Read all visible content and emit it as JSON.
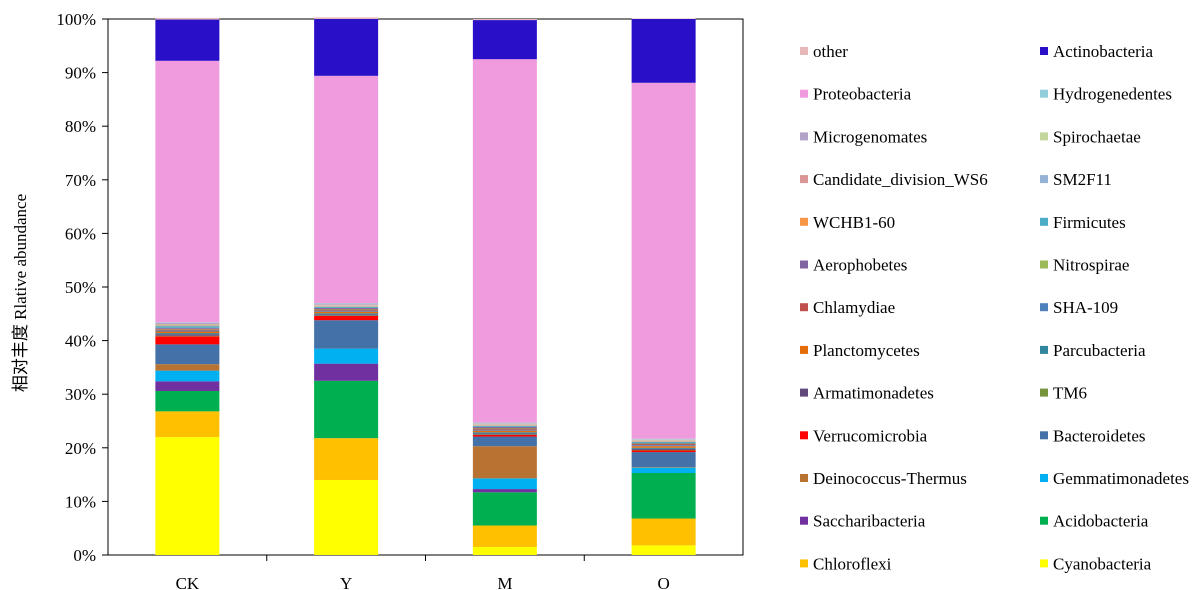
{
  "chart_data": {
    "type": "bar",
    "stacked": true,
    "ylabel": "相对丰度 Rlative abundance",
    "ylim": [
      0,
      100
    ],
    "ytick_labels": [
      "0%",
      "10%",
      "20%",
      "30%",
      "40%",
      "50%",
      "60%",
      "70%",
      "80%",
      "90%",
      "100%"
    ],
    "categories": [
      "CK",
      "Y",
      "M",
      "O"
    ],
    "legend_position": "right",
    "grid": false,
    "series": [
      {
        "name": "Cyanobacteria",
        "color": "#FFFF00",
        "values": [
          22.0,
          14.0,
          1.5,
          1.8
        ]
      },
      {
        "name": "Chloroflexi",
        "color": "#FFC000",
        "values": [
          4.8,
          7.8,
          4.0,
          5.0
        ]
      },
      {
        "name": "Acidobacteria",
        "color": "#00B050",
        "values": [
          3.8,
          10.7,
          6.2,
          8.5
        ]
      },
      {
        "name": "Saccharibacteria",
        "color": "#7030A0",
        "values": [
          1.8,
          3.2,
          0.6,
          0.0
        ]
      },
      {
        "name": "Gemmatimonadetes",
        "color": "#00B0F0",
        "values": [
          2.0,
          2.8,
          2.0,
          1.0
        ]
      },
      {
        "name": "Deinococcus-Thermus",
        "color": "#B87333",
        "values": [
          1.2,
          0.0,
          6.0,
          0.1
        ]
      },
      {
        "name": "Bacteroidetes",
        "color": "#4472A8",
        "values": [
          3.7,
          5.3,
          1.8,
          2.8
        ]
      },
      {
        "name": "Verrucomicrobia",
        "color": "#FF0000",
        "values": [
          1.5,
          0.8,
          0.3,
          0.3
        ]
      },
      {
        "name": "TM6",
        "color": "#77933C",
        "values": [
          0.1,
          0.1,
          0.1,
          0.1
        ]
      },
      {
        "name": "Armatimonadetes",
        "color": "#60497A",
        "values": [
          0.3,
          0.2,
          0.2,
          0.2
        ]
      },
      {
        "name": "Parcubacteria",
        "color": "#31859C",
        "values": [
          0.2,
          0.2,
          0.2,
          0.2
        ]
      },
      {
        "name": "Planctomycetes",
        "color": "#E46C0A",
        "values": [
          0.3,
          0.3,
          0.3,
          0.3
        ]
      },
      {
        "name": "SHA-109",
        "color": "#4F81BD",
        "values": [
          0.2,
          0.2,
          0.2,
          0.2
        ]
      },
      {
        "name": "Chlamydiae",
        "color": "#C0504D",
        "values": [
          0.2,
          0.2,
          0.2,
          0.2
        ]
      },
      {
        "name": "Nitrospirae",
        "color": "#9BBB59",
        "values": [
          0.1,
          0.1,
          0.1,
          0.1
        ]
      },
      {
        "name": "Aerophobetes",
        "color": "#8064A2",
        "values": [
          0.2,
          0.2,
          0.2,
          0.1
        ]
      },
      {
        "name": "Firmicutes",
        "color": "#4BACC6",
        "values": [
          0.3,
          0.2,
          0.2,
          0.2
        ]
      },
      {
        "name": "WCHB1-60",
        "color": "#F79646",
        "values": [
          0.1,
          0.1,
          0.1,
          0.1
        ]
      },
      {
        "name": "SM2F11",
        "color": "#95B3D7",
        "values": [
          0.1,
          0.1,
          0.1,
          0.1
        ]
      },
      {
        "name": "Candidate_division_WS6",
        "color": "#D99694",
        "values": [
          0.1,
          0.1,
          0.1,
          0.1
        ]
      },
      {
        "name": "Spirochaetae",
        "color": "#C3D69B",
        "values": [
          0.1,
          0.1,
          0.1,
          0.1
        ]
      },
      {
        "name": "Microgenomates",
        "color": "#B2A2C7",
        "values": [
          0.2,
          0.2,
          0.1,
          0.1
        ]
      },
      {
        "name": "Hydrogenedentes",
        "color": "#92CDDC",
        "values": [
          0.1,
          0.1,
          0.1,
          0.1
        ]
      },
      {
        "name": "Proteobacteria",
        "color": "#F09BDD",
        "values": [
          48.8,
          42.4,
          67.8,
          66.4
        ]
      },
      {
        "name": "Actinobacteria",
        "color": "#2A0FC8",
        "values": [
          7.7,
          10.6,
          7.3,
          11.9
        ]
      },
      {
        "name": "other",
        "color": "#E6B9B8",
        "values": [
          0.3,
          0.3,
          0.2,
          0.1
        ]
      }
    ],
    "legend_order": [
      "other",
      "Actinobacteria",
      "Proteobacteria",
      "Hydrogenedentes",
      "Microgenomates",
      "Spirochaetae",
      "Candidate_division_WS6",
      "SM2F11",
      "WCHB1-60",
      "Firmicutes",
      "Aerophobetes",
      "Nitrospirae",
      "Chlamydiae",
      "SHA-109",
      "Planctomycetes",
      "Parcubacteria",
      "Armatimonadetes",
      "TM6",
      "Verrucomicrobia",
      "Bacteroidetes",
      "Deinococcus-Thermus",
      "Gemmatimonadetes",
      "Saccharibacteria",
      "Acidobacteria",
      "Chloroflexi",
      "Cyanobacteria"
    ]
  }
}
